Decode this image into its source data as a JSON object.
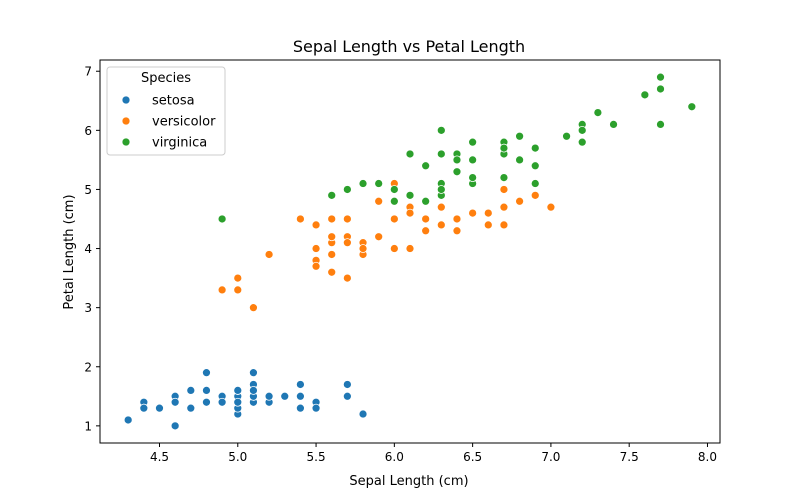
{
  "chart_data": {
    "type": "scatter",
    "title": "Sepal Length vs Petal Length",
    "xlabel": "Sepal Length (cm)",
    "ylabel": "Petal Length (cm)",
    "xlim": [
      4.12,
      8.08
    ],
    "ylim": [
      0.71,
      7.19
    ],
    "xticks": [
      4.5,
      5.0,
      5.5,
      6.0,
      6.5,
      7.0,
      7.5,
      8.0
    ],
    "xtick_labels": [
      "4.5",
      "5.0",
      "5.5",
      "6.0",
      "6.5",
      "7.0",
      "7.5",
      "8.0"
    ],
    "yticks": [
      1,
      2,
      3,
      4,
      5,
      6,
      7
    ],
    "ytick_labels": [
      "1",
      "2",
      "3",
      "4",
      "5",
      "6",
      "7"
    ],
    "grid": false,
    "legend": {
      "title": "Species",
      "placement": "top-left"
    },
    "series": [
      {
        "name": "setosa",
        "color": "#1f77b4",
        "points": [
          [
            5.1,
            1.4
          ],
          [
            4.9,
            1.4
          ],
          [
            4.7,
            1.3
          ],
          [
            4.6,
            1.5
          ],
          [
            5.0,
            1.4
          ],
          [
            5.4,
            1.7
          ],
          [
            4.6,
            1.4
          ],
          [
            5.0,
            1.5
          ],
          [
            4.4,
            1.4
          ],
          [
            4.9,
            1.5
          ],
          [
            5.4,
            1.5
          ],
          [
            4.8,
            1.6
          ],
          [
            4.8,
            1.4
          ],
          [
            4.3,
            1.1
          ],
          [
            5.8,
            1.2
          ],
          [
            5.7,
            1.5
          ],
          [
            5.4,
            1.3
          ],
          [
            5.1,
            1.4
          ],
          [
            5.7,
            1.7
          ],
          [
            5.1,
            1.5
          ],
          [
            5.4,
            1.7
          ],
          [
            5.1,
            1.5
          ],
          [
            4.6,
            1.0
          ],
          [
            5.1,
            1.7
          ],
          [
            4.8,
            1.9
          ],
          [
            5.0,
            1.6
          ],
          [
            5.0,
            1.6
          ],
          [
            5.2,
            1.5
          ],
          [
            5.2,
            1.4
          ],
          [
            4.7,
            1.6
          ],
          [
            4.8,
            1.6
          ],
          [
            5.4,
            1.5
          ],
          [
            5.2,
            1.5
          ],
          [
            5.5,
            1.4
          ],
          [
            4.9,
            1.5
          ],
          [
            5.0,
            1.2
          ],
          [
            5.5,
            1.3
          ],
          [
            4.9,
            1.4
          ],
          [
            4.4,
            1.3
          ],
          [
            5.1,
            1.5
          ],
          [
            5.0,
            1.3
          ],
          [
            4.5,
            1.3
          ],
          [
            4.4,
            1.3
          ],
          [
            5.0,
            1.6
          ],
          [
            5.1,
            1.9
          ],
          [
            4.8,
            1.4
          ],
          [
            5.1,
            1.6
          ],
          [
            4.6,
            1.4
          ],
          [
            5.3,
            1.5
          ],
          [
            5.0,
            1.4
          ]
        ]
      },
      {
        "name": "versicolor",
        "color": "#ff7f0e",
        "points": [
          [
            7.0,
            4.7
          ],
          [
            6.4,
            4.5
          ],
          [
            6.9,
            4.9
          ],
          [
            5.5,
            4.0
          ],
          [
            6.5,
            4.6
          ],
          [
            5.7,
            4.5
          ],
          [
            6.3,
            4.7
          ],
          [
            4.9,
            3.3
          ],
          [
            6.6,
            4.6
          ],
          [
            5.2,
            3.9
          ],
          [
            5.0,
            3.5
          ],
          [
            5.9,
            4.2
          ],
          [
            6.0,
            4.0
          ],
          [
            6.1,
            4.7
          ],
          [
            5.6,
            3.6
          ],
          [
            6.7,
            4.4
          ],
          [
            5.6,
            4.5
          ],
          [
            5.8,
            4.1
          ],
          [
            6.2,
            4.5
          ],
          [
            5.6,
            3.9
          ],
          [
            5.9,
            4.8
          ],
          [
            6.1,
            4.0
          ],
          [
            6.3,
            4.9
          ],
          [
            6.1,
            4.7
          ],
          [
            6.4,
            4.3
          ],
          [
            6.6,
            4.4
          ],
          [
            6.8,
            4.8
          ],
          [
            6.7,
            5.0
          ],
          [
            6.0,
            4.5
          ],
          [
            5.7,
            3.5
          ],
          [
            5.5,
            3.8
          ],
          [
            5.5,
            3.7
          ],
          [
            5.8,
            3.9
          ],
          [
            6.0,
            5.1
          ],
          [
            5.4,
            4.5
          ],
          [
            6.0,
            4.5
          ],
          [
            6.7,
            4.7
          ],
          [
            6.3,
            4.4
          ],
          [
            5.6,
            4.1
          ],
          [
            5.5,
            4.0
          ],
          [
            5.5,
            4.4
          ],
          [
            6.1,
            4.6
          ],
          [
            5.8,
            4.0
          ],
          [
            5.0,
            3.3
          ],
          [
            5.6,
            4.2
          ],
          [
            5.7,
            4.2
          ],
          [
            5.7,
            4.2
          ],
          [
            6.2,
            4.3
          ],
          [
            5.1,
            3.0
          ],
          [
            5.7,
            4.1
          ]
        ]
      },
      {
        "name": "virginica",
        "color": "#2ca02c",
        "points": [
          [
            6.3,
            6.0
          ],
          [
            5.8,
            5.1
          ],
          [
            7.1,
            5.9
          ],
          [
            6.3,
            5.6
          ],
          [
            6.5,
            5.8
          ],
          [
            7.6,
            6.6
          ],
          [
            4.9,
            4.5
          ],
          [
            7.3,
            6.3
          ],
          [
            6.7,
            5.8
          ],
          [
            7.2,
            6.1
          ],
          [
            6.5,
            5.1
          ],
          [
            6.4,
            5.3
          ],
          [
            6.8,
            5.5
          ],
          [
            5.7,
            5.0
          ],
          [
            5.8,
            5.1
          ],
          [
            6.4,
            5.3
          ],
          [
            6.5,
            5.5
          ],
          [
            7.7,
            6.7
          ],
          [
            7.7,
            6.9
          ],
          [
            6.0,
            5.0
          ],
          [
            6.9,
            5.7
          ],
          [
            5.6,
            4.9
          ],
          [
            7.7,
            6.7
          ],
          [
            6.3,
            4.9
          ],
          [
            6.7,
            5.7
          ],
          [
            7.2,
            6.0
          ],
          [
            6.2,
            4.8
          ],
          [
            6.1,
            4.9
          ],
          [
            6.4,
            5.6
          ],
          [
            7.2,
            5.8
          ],
          [
            7.4,
            6.1
          ],
          [
            7.9,
            6.4
          ],
          [
            6.4,
            5.6
          ],
          [
            6.3,
            5.1
          ],
          [
            6.1,
            5.6
          ],
          [
            7.7,
            6.1
          ],
          [
            6.3,
            5.6
          ],
          [
            6.4,
            5.5
          ],
          [
            6.0,
            4.8
          ],
          [
            6.9,
            5.4
          ],
          [
            6.7,
            5.6
          ],
          [
            6.9,
            5.1
          ],
          [
            5.8,
            5.1
          ],
          [
            6.8,
            5.9
          ],
          [
            6.7,
            5.7
          ],
          [
            6.7,
            5.2
          ],
          [
            6.3,
            5.0
          ],
          [
            6.5,
            5.2
          ],
          [
            6.2,
            5.4
          ],
          [
            5.9,
            5.1
          ]
        ]
      }
    ]
  }
}
